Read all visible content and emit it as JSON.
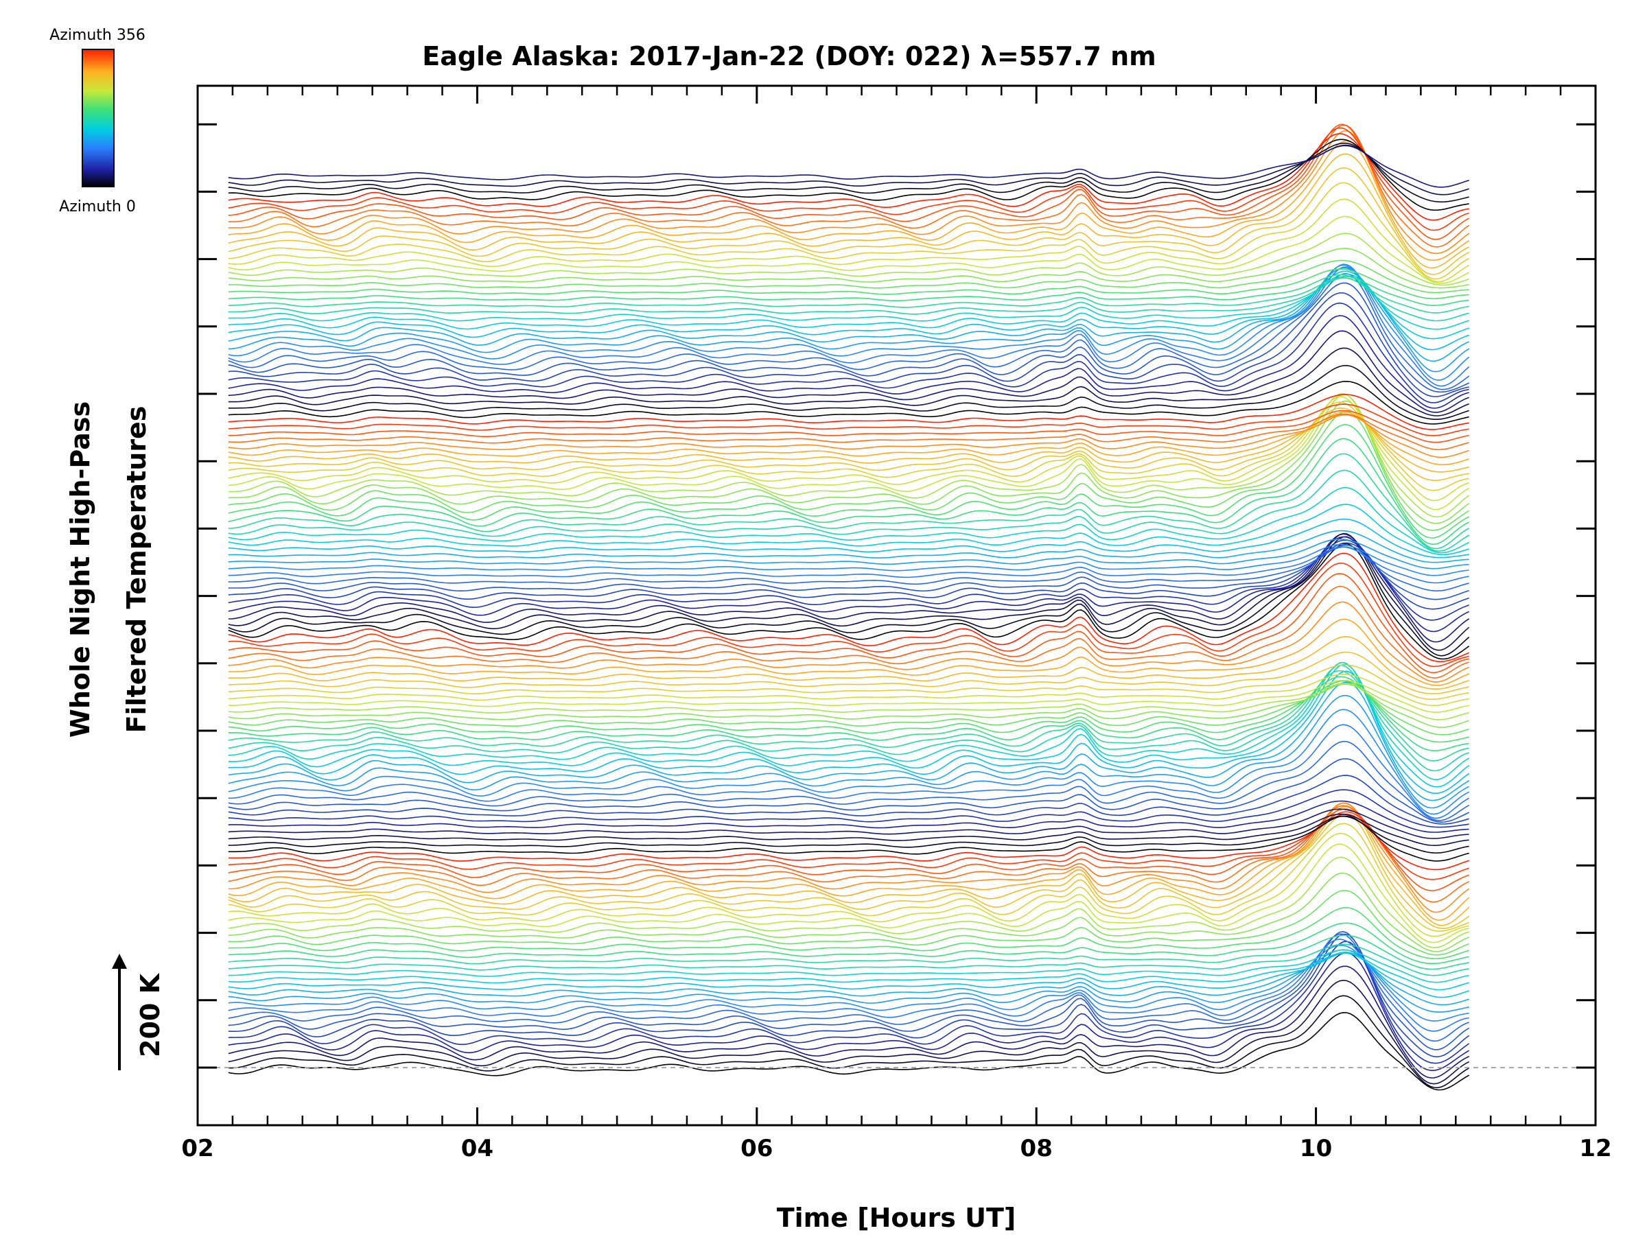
{
  "chart_data": {
    "type": "line",
    "title": "Eagle Alaska: 2017-Jan-22 (DOY: 022) λ=557.7 nm",
    "xlabel": "Time [Hours UT]",
    "ylabel_line1": "Whole Night High-Pass",
    "ylabel_line2": "Filtered Temperatures",
    "xlim": [
      2,
      12
    ],
    "x_ticks": [
      "02",
      "04",
      "06",
      "08",
      "10",
      "12"
    ],
    "x_range_data": [
      2.22,
      11.1
    ],
    "scale_bar": {
      "label": "200 K",
      "value_K": 200
    },
    "colorbar": {
      "top_label": "Azimuth 356",
      "bottom_label": "Azimuth 0",
      "azimuth_range": [
        0,
        356
      ]
    },
    "num_traces": 140,
    "traces_per_cycle": 34,
    "features": [
      {
        "time": 8.32,
        "description": "sharp local maximum"
      },
      {
        "time": 10.22,
        "description": "largest peak"
      },
      {
        "time": 10.5,
        "description": "rapid decrease"
      }
    ],
    "baseline_dashed": true,
    "grid": false,
    "legend": "colorbar top-left"
  }
}
